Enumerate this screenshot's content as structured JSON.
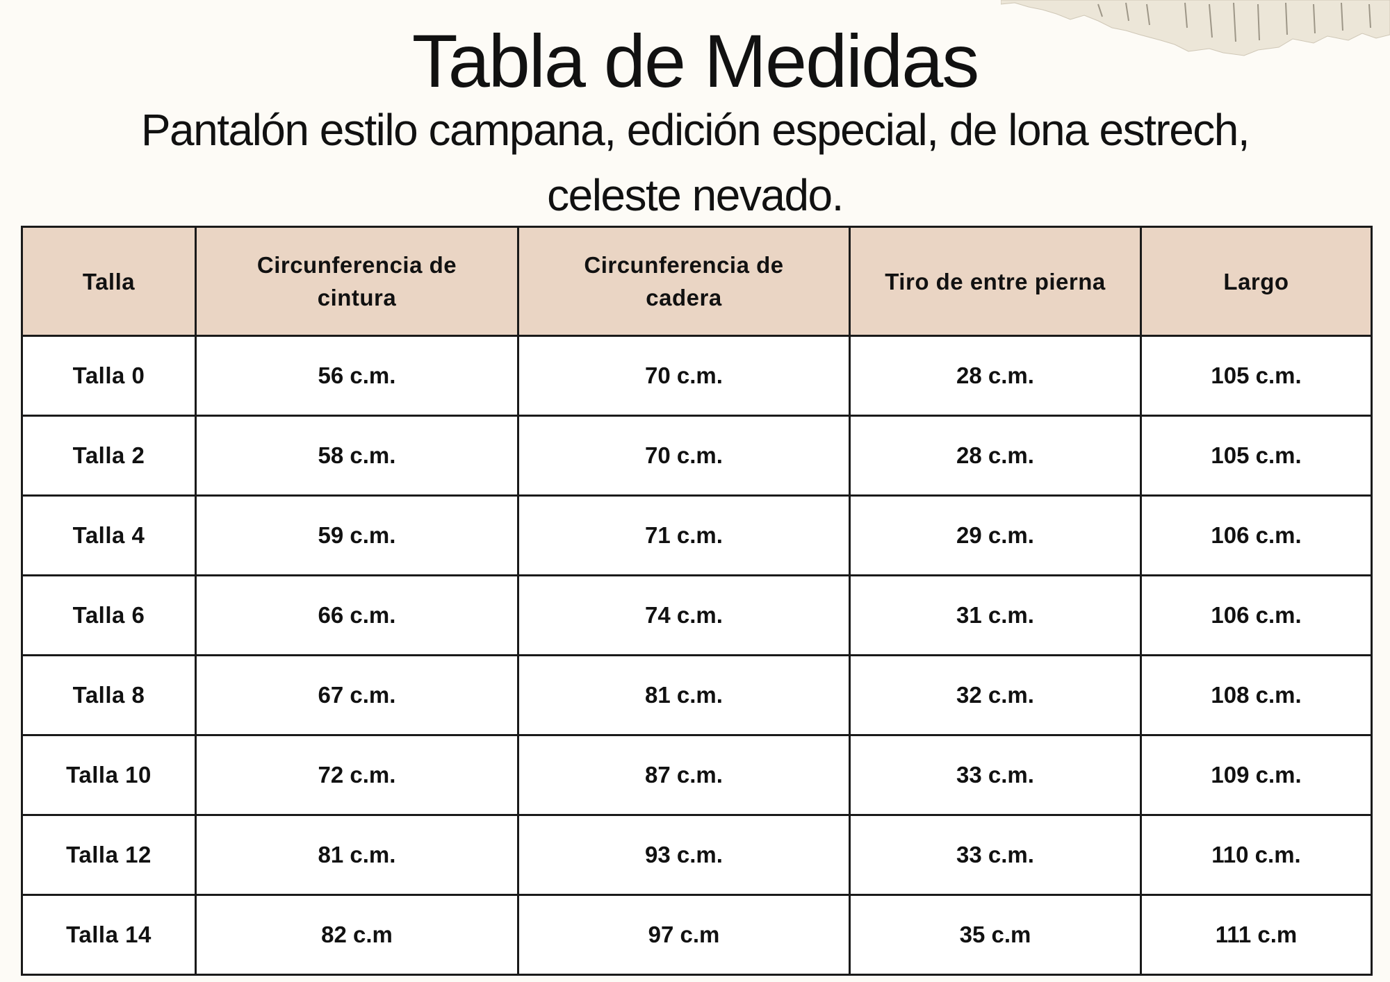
{
  "title": "Tabla de Medidas",
  "subtitle": "Pantalón estilo campana, edición especial, de lona estrech, celeste nevado.",
  "colors": {
    "background": "#fdfbf6",
    "header_fill": "#ead5c4",
    "border": "#1a1a1a"
  },
  "table": {
    "headers": [
      "Talla",
      "Circunferencia  de cintura",
      "Circunferencia de cadera",
      "Tiro de entre pierna",
      "Largo"
    ],
    "rows": [
      [
        "Talla 0",
        "56 c.m.",
        "70 c.m.",
        "28 c.m.",
        "105 c.m."
      ],
      [
        "Talla 2",
        "58 c.m.",
        "70 c.m.",
        "28 c.m.",
        "105 c.m."
      ],
      [
        "Talla 4",
        "59 c.m.",
        "71 c.m.",
        "29 c.m.",
        "106 c.m."
      ],
      [
        "Talla 6",
        "66 c.m.",
        "74 c.m.",
        "31 c.m.",
        "106 c.m."
      ],
      [
        "Talla 8",
        "67 c.m.",
        "81 c.m.",
        "32 c.m.",
        "108 c.m."
      ],
      [
        "Talla 10",
        "72 c.m.",
        "87 c.m.",
        "33 c.m.",
        "109 c.m."
      ],
      [
        "Talla 12",
        "81 c.m.",
        "93 c.m.",
        "33 c.m.",
        "110 c.m."
      ],
      [
        "Talla 14",
        "82 c.m",
        "97 c.m",
        "35 c.m",
        "111 c.m"
      ]
    ]
  }
}
